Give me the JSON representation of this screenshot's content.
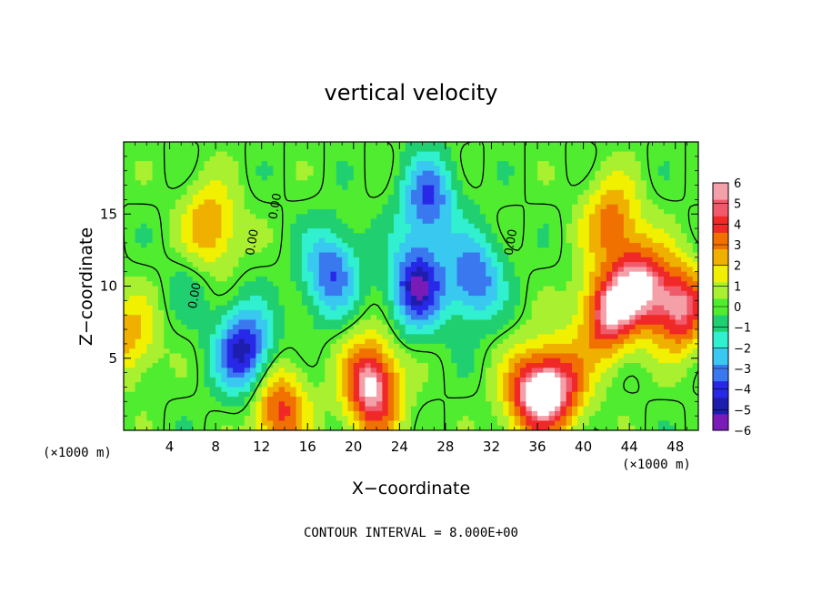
{
  "chart_data": {
    "type": "heatmap",
    "title": "vertical velocity",
    "xlabel": "X−coordinate",
    "ylabel": "Z−coordinate",
    "x_scale_label": "(×1000 m)",
    "y_scale_label": "(×1000 m)",
    "xlim": [
      0,
      50
    ],
    "ylim": [
      0,
      20
    ],
    "x_ticks": [
      4,
      8,
      12,
      16,
      20,
      24,
      28,
      32,
      36,
      40,
      44,
      48
    ],
    "y_ticks": [
      5,
      10,
      15
    ],
    "colorbar": {
      "ticks": [
        6,
        5,
        4,
        3,
        2,
        1,
        0,
        "−1",
        "−2",
        "−3",
        "−4",
        "−5",
        "−6"
      ],
      "range": [
        -6,
        6
      ]
    },
    "contour_labels": [
      "0.00",
      "0.00",
      "0.00",
      "0.00"
    ],
    "contour_interval_note": "CONTOUR INTERVAL = 8.000E+00",
    "grid": false,
    "legend_position": "right",
    "features": [
      {
        "x": 0.5,
        "z": 6.5,
        "w": 3.0
      },
      {
        "x": 7.5,
        "z": 14.0,
        "w": 3.8
      },
      {
        "x": 6.0,
        "z": 10.5,
        "w": -1.0
      },
      {
        "x": 10.5,
        "z": 5.5,
        "w": -6.0
      },
      {
        "x": 13.5,
        "z": 1.5,
        "w": 5.0
      },
      {
        "x": 18.0,
        "z": 11.0,
        "w": -4.5
      },
      {
        "x": 21.5,
        "z": 3.5,
        "w": 6.0
      },
      {
        "x": 25.5,
        "z": 10.0,
        "w": -6.0
      },
      {
        "x": 22.0,
        "z": 1.0,
        "w": 2.0
      },
      {
        "x": 26.5,
        "z": 16.0,
        "w": -4.5
      },
      {
        "x": 30.5,
        "z": 10.5,
        "w": -4.5
      },
      {
        "x": 35.5,
        "z": 2.5,
        "w": 6.0
      },
      {
        "x": 42.0,
        "z": 8.0,
        "w": 6.0
      },
      {
        "x": 45.0,
        "z": 10.0,
        "w": 6.0
      },
      {
        "x": 48.5,
        "z": 8.5,
        "w": 6.0
      },
      {
        "x": 42.5,
        "z": 14.5,
        "w": 4.0
      },
      {
        "x": 38.0,
        "z": 3.0,
        "w": 5.0
      }
    ]
  }
}
